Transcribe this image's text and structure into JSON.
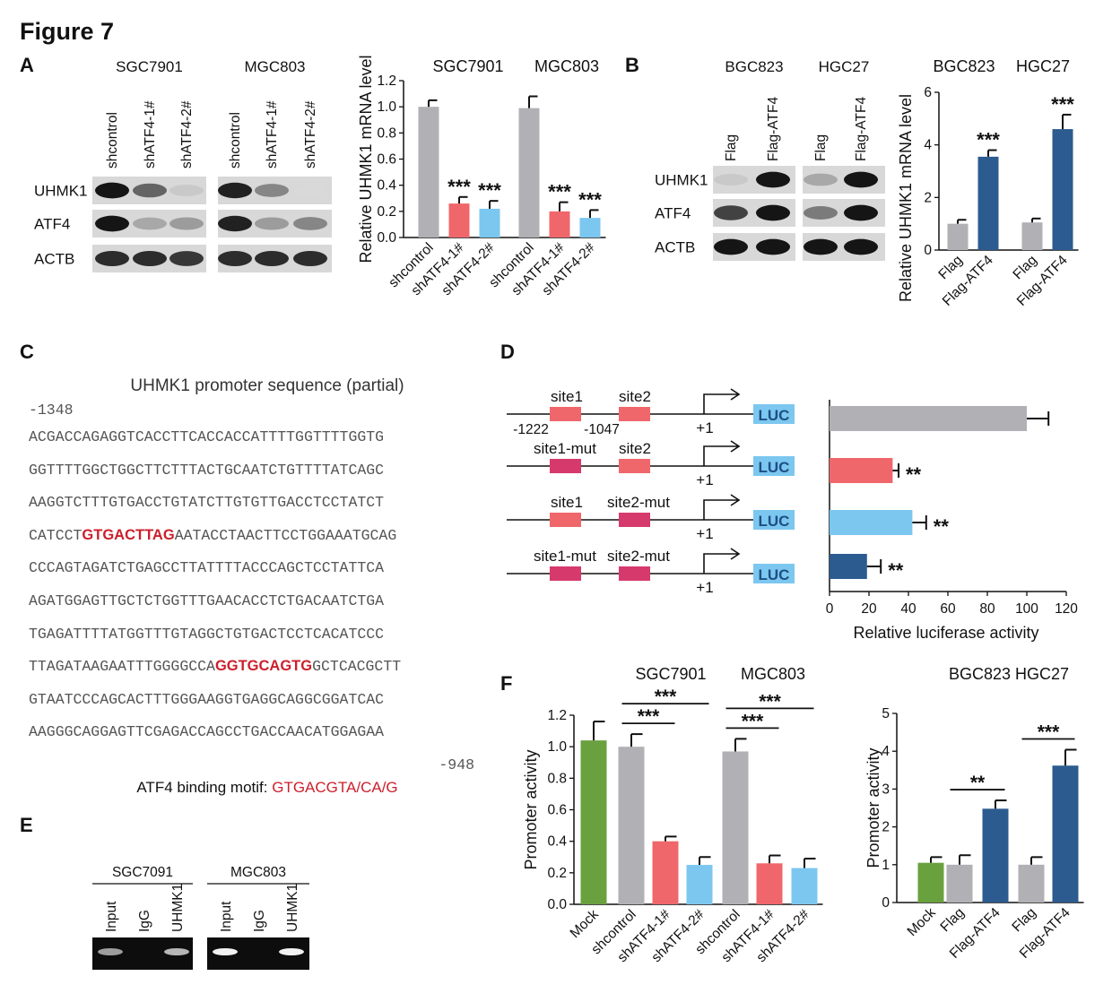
{
  "figure_title": "Figure 7",
  "panels": {
    "a": "A",
    "b": "B",
    "c": "C",
    "d": "D",
    "e": "E",
    "f": "F"
  },
  "blot_a": {
    "cell_lines": [
      "SGC7901",
      "MGC803"
    ],
    "lanes": [
      [
        "shcontrol",
        "shATF4-1#",
        "shATF4-2#"
      ],
      [
        "shcontrol",
        "shATF4-1#",
        "shATF4-2#"
      ]
    ],
    "rows": [
      "UHMK1",
      "ATF4",
      "ACTB"
    ],
    "band_intensity": [
      [
        [
          0.95,
          0.6,
          0.15
        ],
        [
          0.9,
          0.45,
          0.08
        ]
      ],
      [
        [
          0.95,
          0.3,
          0.35
        ],
        [
          0.9,
          0.35,
          0.45
        ]
      ],
      [
        [
          0.85,
          0.85,
          0.8
        ],
        [
          0.85,
          0.85,
          0.85
        ]
      ]
    ]
  },
  "blot_b": {
    "cell_lines": [
      "BGC823",
      "HGC27"
    ],
    "lanes": [
      [
        "Flag",
        "Flag-ATF4"
      ],
      [
        "Flag",
        "Flag-ATF4"
      ]
    ],
    "rows": [
      "UHMK1",
      "ATF4",
      "ACTB"
    ],
    "band_intensity": [
      [
        [
          0.15,
          0.95
        ],
        [
          0.3,
          0.95
        ]
      ],
      [
        [
          0.75,
          0.95
        ],
        [
          0.5,
          0.95
        ]
      ],
      [
        [
          0.95,
          0.95
        ],
        [
          0.95,
          0.95
        ]
      ]
    ]
  },
  "promoter": {
    "title": "UHMK1 promoter sequence (partial)",
    "start": "-1348",
    "end": "-948",
    "lines": [
      {
        "before": "ACGACCAGAGGTCACCTTCACCACCATTTTGGTTTTGGTG",
        "motif": "",
        "after": ""
      },
      {
        "before": "GGTTTTGGCTGGCTTCTTTACTGCAATCTGTTTTATCAGC",
        "motif": "",
        "after": ""
      },
      {
        "before": "AAGGTCTTTGTGACCTGTATCTTGTGTTGACCTCCTATCT",
        "motif": "",
        "after": ""
      },
      {
        "before": "CATCCT",
        "motif": "GTGACTTAG",
        "after": "AATACCTAACTTCCTGGAAATGCAG"
      },
      {
        "before": "CCCAGTAGATCTGAGCCTTATTTTACCCAGCTCCTATTCA",
        "motif": "",
        "after": ""
      },
      {
        "before": "AGATGGAGTTGCTCTGGTTTGAACACCTCTGACAATCTGA",
        "motif": "",
        "after": ""
      },
      {
        "before": "TGAGATTTTATGGTTTGTAGGCTGTGACTCCTCACATCCC",
        "motif": "",
        "after": ""
      },
      {
        "before": "TTAGATAAGAATTTGGGGCCA",
        "motif": "GGTGCAGTG",
        "after": "GCTCACGCTT"
      },
      {
        "before": "GTAATCCCAGCACTTTGGGAAGGTGAGGCAGGCGGATCAC",
        "motif": "",
        "after": ""
      },
      {
        "before": "AAGGGCAGGAGTTCGAGACCAGCCTGACCAACATGGAGAA",
        "motif": "",
        "after": ""
      }
    ],
    "motif_label": "ATF4 binding motif: ",
    "motif_value": "GTGACGTA/CA/G"
  },
  "constructs": {
    "rows": [
      {
        "site1": "site1",
        "site2": "site2",
        "mut1": false,
        "mut2": false
      },
      {
        "site1": "site1-mut",
        "site2": "site2",
        "mut1": true,
        "mut2": false
      },
      {
        "site1": "site1",
        "site2": "site2-mut",
        "mut1": false,
        "mut2": true
      },
      {
        "site1": "site1-mut",
        "site2": "site2-mut",
        "mut1": true,
        "mut2": true
      }
    ],
    "pos1": "-1222",
    "pos2": "-1047",
    "tss": "+1",
    "reporter": "LUC"
  },
  "chip": {
    "cell_lines": [
      "SGC7091",
      "MGC803"
    ],
    "lanes": [
      "Input",
      "IgG",
      "UHMK1"
    ],
    "band_intensity": [
      [
        0.6,
        0,
        0.7
      ],
      [
        0.95,
        0,
        0.95
      ]
    ]
  },
  "colors": {
    "grey": "#b1b1b5",
    "salmon": "#f0676b",
    "lightblue": "#7cc7ef",
    "navy": "#2c5b8f",
    "green": "#6aa13f",
    "motif_red": "#cc1f2b"
  },
  "chart_data": [
    {
      "id": "A",
      "type": "bar",
      "title": "",
      "group_labels": [
        "SGC7901",
        "MGC803"
      ],
      "categories": [
        "shcontrol",
        "shATF4-1#",
        "shATF4-2#",
        "shcontrol",
        "shATF4-1#",
        "shATF4-2#"
      ],
      "values": [
        1.0,
        0.26,
        0.22,
        0.99,
        0.2,
        0.15
      ],
      "errors": [
        0.05,
        0.05,
        0.06,
        0.09,
        0.07,
        0.06
      ],
      "significance": [
        "",
        "***",
        "***",
        "",
        "***",
        "***"
      ],
      "bar_colors": [
        "grey",
        "salmon",
        "lightblue",
        "grey",
        "salmon",
        "lightblue"
      ],
      "ylabel": "Relative UHMK1 mRNA level",
      "xlabel": "",
      "ylim": [
        0,
        1.2
      ],
      "yticks": [
        "0.0",
        "0.2",
        "0.4",
        "0.6",
        "0.8",
        "1.0",
        "1.2"
      ],
      "brackets": []
    },
    {
      "id": "B",
      "type": "bar",
      "title": "",
      "group_labels": [
        "BGC823",
        "HGC27"
      ],
      "categories": [
        "Flag",
        "Flag-ATF4",
        "Flag",
        "Flag-ATF4"
      ],
      "values": [
        1.0,
        3.55,
        1.05,
        4.6
      ],
      "errors": [
        0.15,
        0.25,
        0.15,
        0.55
      ],
      "significance": [
        "",
        "***",
        "",
        "***"
      ],
      "bar_colors": [
        "grey",
        "navy",
        "grey",
        "navy"
      ],
      "ylabel": "Relative UHMK1 mRNA level",
      "xlabel": "",
      "ylim": [
        0,
        6
      ],
      "yticks": [
        "0",
        "2",
        "4",
        "6"
      ],
      "brackets": []
    },
    {
      "id": "D",
      "type": "bar-horizontal",
      "title": "",
      "categories": [
        "site1 / site2",
        "site1-mut / site2",
        "site1 / site2-mut",
        "site1-mut / site2-mut"
      ],
      "values": [
        100,
        32,
        42,
        19
      ],
      "errors": [
        11,
        3,
        7,
        7
      ],
      "significance": [
        "",
        "**",
        "**",
        "**"
      ],
      "bar_colors": [
        "grey",
        "salmon",
        "lightblue",
        "navy"
      ],
      "xlabel": "Relative luciferase activity",
      "ylabel": "",
      "xlim": [
        0,
        120
      ],
      "xticks": [
        "0",
        "20",
        "40",
        "60",
        "80",
        "100",
        "120"
      ]
    },
    {
      "id": "F1",
      "type": "bar",
      "title": "",
      "group_labels": [
        "SGC7901",
        "MGC803"
      ],
      "categories": [
        "Mock",
        "shcontrol",
        "shATF4-1#",
        "shATF4-2#",
        "shcontrol",
        "shATF4-1#",
        "shATF4-2#"
      ],
      "values": [
        1.04,
        1.0,
        0.4,
        0.25,
        0.97,
        0.26,
        0.23
      ],
      "errors": [
        0.12,
        0.08,
        0.03,
        0.05,
        0.08,
        0.05,
        0.06
      ],
      "significance": [
        "",
        "",
        "",
        "",
        "",
        "",
        ""
      ],
      "bar_colors": [
        "green",
        "grey",
        "salmon",
        "lightblue",
        "grey",
        "salmon",
        "lightblue"
      ],
      "ylabel": "Promoter activity",
      "xlabel": "",
      "ylim": [
        0,
        1.2
      ],
      "yticks": [
        "0.0",
        "0.2",
        "0.4",
        "0.6",
        "0.8",
        "1.0",
        "1.2"
      ],
      "brackets": [
        {
          "from": 1,
          "to": 2,
          "label": "***",
          "level": 0
        },
        {
          "from": 1,
          "to": 3,
          "label": "***",
          "level": 1
        },
        {
          "from": 4,
          "to": 5,
          "label": "***",
          "level": 0
        },
        {
          "from": 4,
          "to": 6,
          "label": "***",
          "level": 1
        }
      ]
    },
    {
      "id": "F2",
      "type": "bar",
      "title": "",
      "group_labels": [
        "BGC823 HGC27"
      ],
      "categories": [
        "Mock",
        "Flag",
        "Flag-ATF4",
        "Flag",
        "Flag-ATF4"
      ],
      "values": [
        1.05,
        1.0,
        2.48,
        1.0,
        3.62
      ],
      "errors": [
        0.15,
        0.25,
        0.22,
        0.2,
        0.42
      ],
      "significance": [
        "",
        "",
        "",
        "",
        ""
      ],
      "bar_colors": [
        "green",
        "grey",
        "navy",
        "grey",
        "navy"
      ],
      "ylabel": "Promoter activity",
      "xlabel": "",
      "ylim": [
        0,
        5
      ],
      "yticks": [
        "0",
        "1",
        "2",
        "3",
        "4",
        "5"
      ],
      "brackets": [
        {
          "from": 1,
          "to": 2,
          "label": "**",
          "level": 0
        },
        {
          "from": 3,
          "to": 4,
          "label": "***",
          "level": 0
        }
      ]
    }
  ]
}
